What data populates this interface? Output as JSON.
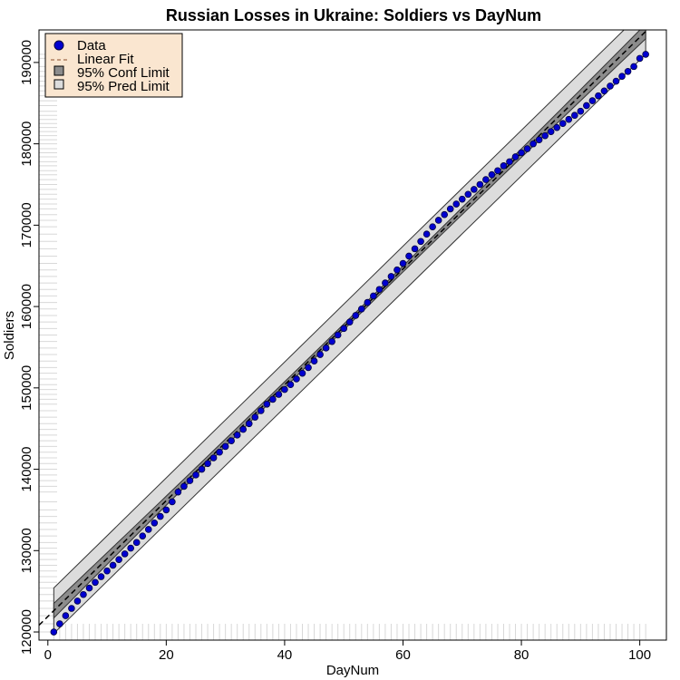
{
  "chart_data": {
    "type": "scatter",
    "title": "Russian Losses in Ukraine: Soldiers vs DayNum",
    "xlabel": "DayNum",
    "ylabel": "Soldiers",
    "xlim": [
      -1.5,
      104.5
    ],
    "ylim": [
      119000,
      194000
    ],
    "x_ticks": [
      0,
      20,
      40,
      60,
      80,
      100
    ],
    "y_ticks": [
      120000,
      130000,
      140000,
      150000,
      160000,
      170000,
      180000,
      190000
    ],
    "colors": {
      "point_fill": "#0000d0",
      "point_edge": "#000040",
      "fit_line": "#000000",
      "conf_band": "#8c8c8c",
      "pred_band": "#dcdcdc",
      "band_edge": "#333333",
      "legend_bg": "#fae6d0"
    },
    "fit": {
      "intercept": 121900,
      "slope": 712,
      "conf_halfwidth_start": 900,
      "conf_halfwidth_mid": 350,
      "conf_halfwidth_end": 900,
      "pred_halfwidth": 2800
    },
    "legend": {
      "position": "top-left",
      "entries": [
        {
          "label": "Data",
          "symbol": "point"
        },
        {
          "label": "Linear Fit",
          "symbol": "dashed-line"
        },
        {
          "label": "95% Conf Limit",
          "symbol": "dark-square"
        },
        {
          "label": "95% Pred Limit",
          "symbol": "light-square"
        }
      ]
    },
    "series": [
      {
        "name": "Data",
        "x": [
          1,
          2,
          3,
          4,
          5,
          6,
          7,
          8,
          9,
          10,
          11,
          12,
          13,
          14,
          15,
          16,
          17,
          18,
          19,
          20,
          21,
          22,
          23,
          24,
          25,
          26,
          27,
          28,
          29,
          30,
          31,
          32,
          33,
          34,
          35,
          36,
          37,
          38,
          39,
          40,
          41,
          42,
          43,
          44,
          45,
          46,
          47,
          48,
          49,
          50,
          51,
          52,
          53,
          54,
          55,
          56,
          57,
          58,
          59,
          60,
          61,
          62,
          63,
          64,
          65,
          66,
          67,
          68,
          69,
          70,
          71,
          72,
          73,
          74,
          75,
          76,
          77,
          78,
          79,
          80,
          81,
          82,
          83,
          84,
          85,
          86,
          87,
          88,
          89,
          90,
          91,
          92,
          93,
          94,
          95,
          96,
          97,
          98,
          99,
          100,
          101
        ],
        "y": [
          120000,
          121000,
          122000,
          122900,
          123800,
          124600,
          125400,
          126100,
          126800,
          127500,
          128200,
          128900,
          129600,
          130300,
          131000,
          131800,
          132600,
          133400,
          134200,
          135000,
          136000,
          137200,
          137900,
          138600,
          139300,
          140000,
          140700,
          141400,
          142100,
          142800,
          143500,
          144200,
          144900,
          145600,
          146400,
          147200,
          148000,
          148600,
          149200,
          149800,
          150400,
          151100,
          151800,
          152500,
          153300,
          154100,
          154900,
          155700,
          156500,
          157300,
          158100,
          158900,
          159700,
          160500,
          161300,
          162100,
          162900,
          163700,
          164500,
          165300,
          166200,
          167100,
          168000,
          168900,
          169800,
          170600,
          171300,
          172000,
          172600,
          173200,
          173800,
          174400,
          175000,
          175600,
          176200,
          176700,
          177300,
          177800,
          178400,
          178900,
          179400,
          180000,
          180500,
          181000,
          181500,
          182000,
          182500,
          183000,
          183500,
          184000,
          184700,
          185300,
          185900,
          186500,
          187100,
          187700,
          188300,
          188900,
          189500,
          190500,
          191000
        ]
      }
    ]
  }
}
